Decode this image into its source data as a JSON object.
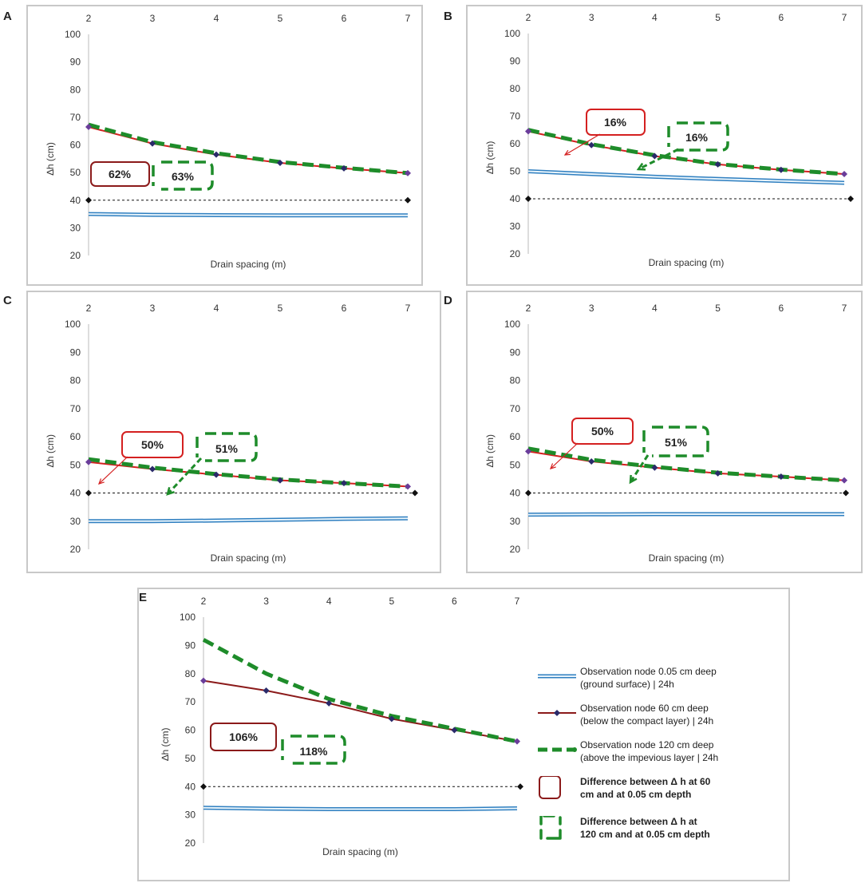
{
  "colors": {
    "ground": "#2f7fc0",
    "ground_inner": "#e8f4fb",
    "node60": "#d42020",
    "node60_dark": "#8b1a1a",
    "marker": "#6a3d9a",
    "node120": "#1e8c2a",
    "threshold": "#111111",
    "frame": "#c8c8c8"
  },
  "legend": {
    "items": [
      {
        "line1": "Observation node 0.05 cm deep",
        "line2": "(ground surface) | 24h",
        "icon": "double-line-icon"
      },
      {
        "line1": "Observation node 60 cm deep",
        "line2": "(below the compact layer) | 24h",
        "icon": "line-diamond-icon"
      },
      {
        "line1": "Observation node 120 cm deep",
        "line2": "(above the impevious layer | 24h",
        "icon": "dashed-line-icon"
      },
      {
        "line1": "Difference between Δ h at 60",
        "line2": "cm and at 0.05 cm depth",
        "icon": "rounded-box-icon"
      },
      {
        "line1": "Difference between Δ h at",
        "line2": "120 cm and at 0.05 cm depth",
        "icon": "dashed-box-icon"
      }
    ]
  },
  "chart_data": [
    {
      "panel": "A",
      "type": "line",
      "xlabel": "Drain spacing (m)",
      "ylabel": "∆h  (cm)",
      "x": [
        2,
        3,
        4,
        5,
        6,
        7
      ],
      "xlim": [
        2,
        7
      ],
      "ylim": [
        20,
        100
      ],
      "yticks": [
        20,
        30,
        40,
        50,
        60,
        70,
        80,
        90,
        100
      ],
      "series": [
        {
          "name": "Observation node 0.05 cm deep (ground surface) | 24h",
          "values": [
            35,
            34.7,
            34.6,
            34.5,
            34.5,
            34.5
          ]
        },
        {
          "name": "Observation node 60 cm deep (below the compact layer) | 24h",
          "values": [
            66.5,
            60.5,
            56.5,
            53.5,
            51.5,
            49.8
          ]
        },
        {
          "name": "Observation node 120 cm deep (above the impevious layer | 24h",
          "values": [
            67.3,
            61,
            57,
            53.8,
            51.7,
            49.8
          ]
        }
      ],
      "threshold": 40,
      "annotations": [
        {
          "label": "62%",
          "style": "box"
        },
        {
          "label": "63%",
          "style": "dashed"
        }
      ]
    },
    {
      "panel": "B",
      "type": "line",
      "xlabel": "Drain spacing (m)",
      "ylabel": "∆h  (cm)",
      "x": [
        2,
        3,
        4,
        5,
        6,
        7
      ],
      "xlim": [
        2,
        7
      ],
      "ylim": [
        20,
        100
      ],
      "yticks": [
        20,
        30,
        40,
        50,
        60,
        70,
        80,
        90,
        100
      ],
      "series": [
        {
          "name": "Observation node 0.05 cm deep (ground surface) | 24h",
          "values": [
            50,
            49,
            48,
            47.2,
            46.5,
            45.8
          ]
        },
        {
          "name": "Observation node 60 cm deep (below the compact layer) | 24h",
          "values": [
            64.5,
            59.5,
            55.5,
            52.5,
            50.5,
            49
          ]
        },
        {
          "name": "Observation node 120 cm deep (above the impevious layer | 24h",
          "values": [
            65,
            59.8,
            55.8,
            52.6,
            50.6,
            49
          ]
        }
      ],
      "threshold": 40,
      "annotations": [
        {
          "label": "16%",
          "style": "box"
        },
        {
          "label": "16%",
          "style": "dashed"
        }
      ]
    },
    {
      "panel": "C",
      "type": "line",
      "xlabel": "Drain spacing (m)",
      "ylabel": "∆h  (cm)",
      "x": [
        2,
        3,
        4,
        5,
        6,
        7
      ],
      "xlim": [
        2,
        7
      ],
      "ylim": [
        20,
        100
      ],
      "yticks": [
        20,
        30,
        40,
        50,
        60,
        70,
        80,
        90,
        100
      ],
      "series": [
        {
          "name": "Observation node 0.05 cm deep (ground surface) | 24h",
          "values": [
            30,
            30,
            30.2,
            30.5,
            30.8,
            31
          ]
        },
        {
          "name": "Observation node 60 cm deep (below the compact layer) | 24h",
          "values": [
            51,
            48.5,
            46.5,
            44.5,
            43.5,
            42.3
          ]
        },
        {
          "name": "Observation node 120 cm deep (above the impevious layer | 24h",
          "values": [
            52,
            49,
            46.7,
            44.8,
            43.5,
            42.3
          ]
        }
      ],
      "threshold": 40,
      "annotations": [
        {
          "label": "50%",
          "style": "box"
        },
        {
          "label": "51%",
          "style": "dashed"
        }
      ]
    },
    {
      "panel": "D",
      "type": "line",
      "xlabel": "Drain spacing (m)",
      "ylabel": "∆h  (cm)",
      "x": [
        2,
        3,
        4,
        5,
        6,
        7
      ],
      "xlim": [
        2,
        7
      ],
      "ylim": [
        20,
        100
      ],
      "yticks": [
        20,
        30,
        40,
        50,
        60,
        70,
        80,
        90,
        100
      ],
      "series": [
        {
          "name": "Observation node 0.05 cm deep (ground surface) | 24h",
          "values": [
            32.3,
            32.4,
            32.5,
            32.5,
            32.5,
            32.5
          ]
        },
        {
          "name": "Observation node 60 cm deep (below the compact layer) | 24h",
          "values": [
            54.8,
            51.2,
            49,
            47,
            45.8,
            44.5
          ]
        },
        {
          "name": "Observation node 120 cm deep (above the impevious layer | 24h",
          "values": [
            55.8,
            51.8,
            49.3,
            47.2,
            45.8,
            44.5
          ]
        }
      ],
      "threshold": 40,
      "annotations": [
        {
          "label": "50%",
          "style": "box"
        },
        {
          "label": "51%",
          "style": "dashed"
        }
      ]
    },
    {
      "panel": "E",
      "type": "line",
      "xlabel": "Drain spacing (m)",
      "ylabel": "∆h  (cm)",
      "x": [
        2,
        3,
        4,
        5,
        6,
        7
      ],
      "xlim": [
        2,
        7
      ],
      "ylim": [
        20,
        100
      ],
      "yticks": [
        20,
        30,
        40,
        50,
        60,
        70,
        80,
        90,
        100
      ],
      "series": [
        {
          "name": "Observation node 0.05 cm deep (ground surface) | 24h",
          "values": [
            32.5,
            32.2,
            32,
            32,
            32,
            32.3
          ]
        },
        {
          "name": "Observation node 60 cm deep (below the compact layer) | 24h",
          "values": [
            77.5,
            74,
            69.5,
            64,
            60,
            56
          ]
        },
        {
          "name": "Observation node 120 cm deep (above the impevious layer | 24h",
          "values": [
            92,
            80,
            71,
            65,
            60.5,
            56
          ]
        }
      ],
      "threshold": 40,
      "annotations": [
        {
          "label": "106%",
          "style": "box"
        },
        {
          "label": "118%",
          "style": "dashed"
        }
      ]
    }
  ]
}
